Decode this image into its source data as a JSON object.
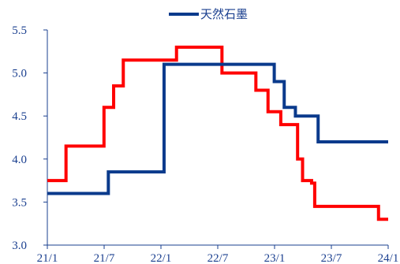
{
  "chart_data": {
    "type": "line",
    "title": "",
    "xlabel": "",
    "ylabel": "",
    "ylim": [
      3.0,
      5.5
    ],
    "yticks": [
      "3.0",
      "3.5",
      "4.0",
      "4.5",
      "5.0",
      "5.5"
    ],
    "xticks": [
      "21/1",
      "21/7",
      "22/1",
      "22/7",
      "23/1",
      "23/7",
      "24/1"
    ],
    "xlim": [
      "2021-01-01",
      "2024-01-01"
    ],
    "grid": false,
    "legend_position": "top-center",
    "series": [
      {
        "name": "天然石墨",
        "color": "#0a3a8c",
        "in_legend": true,
        "step": true,
        "points": [
          [
            "2021-01-01",
            3.6
          ],
          [
            "2021-07-15",
            3.6
          ],
          [
            "2021-07-16",
            3.85
          ],
          [
            "2022-01-10",
            3.85
          ],
          [
            "2022-01-11",
            5.1
          ],
          [
            "2022-12-30",
            5.1
          ],
          [
            "2022-12-31",
            4.9
          ],
          [
            "2023-01-31",
            4.9
          ],
          [
            "2023-02-01",
            4.6
          ],
          [
            "2023-03-08",
            4.6
          ],
          [
            "2023-03-09",
            4.5
          ],
          [
            "2023-05-20",
            4.5
          ],
          [
            "2023-05-21",
            4.2
          ],
          [
            "2024-01-01",
            4.2
          ]
        ]
      },
      {
        "name": "",
        "color": "#ff0000",
        "in_legend": false,
        "step": true,
        "points": [
          [
            "2021-01-01",
            3.75
          ],
          [
            "2021-03-01",
            3.75
          ],
          [
            "2021-03-02",
            4.15
          ],
          [
            "2021-07-01",
            4.15
          ],
          [
            "2021-07-02",
            4.6
          ],
          [
            "2021-08-01",
            4.6
          ],
          [
            "2021-08-02",
            4.85
          ],
          [
            "2021-09-01",
            4.85
          ],
          [
            "2021-09-02",
            5.15
          ],
          [
            "2022-02-19",
            5.15
          ],
          [
            "2022-02-20",
            5.3
          ],
          [
            "2022-07-15",
            5.3
          ],
          [
            "2022-07-16",
            5.0
          ],
          [
            "2022-11-01",
            5.0
          ],
          [
            "2022-11-02",
            4.8
          ],
          [
            "2022-12-10",
            4.8
          ],
          [
            "2022-12-11",
            4.55
          ],
          [
            "2023-01-20",
            4.55
          ],
          [
            "2023-01-21",
            4.4
          ],
          [
            "2023-03-15",
            4.4
          ],
          [
            "2023-03-16",
            4.0
          ],
          [
            "2023-03-31",
            4.0
          ],
          [
            "2023-04-01",
            3.75
          ],
          [
            "2023-04-29",
            3.75
          ],
          [
            "2023-04-30",
            3.72
          ],
          [
            "2023-05-09",
            3.72
          ],
          [
            "2023-05-10",
            3.45
          ],
          [
            "2023-11-30",
            3.45
          ],
          [
            "2023-12-01",
            3.3
          ],
          [
            "2024-01-01",
            3.3
          ]
        ]
      }
    ]
  }
}
